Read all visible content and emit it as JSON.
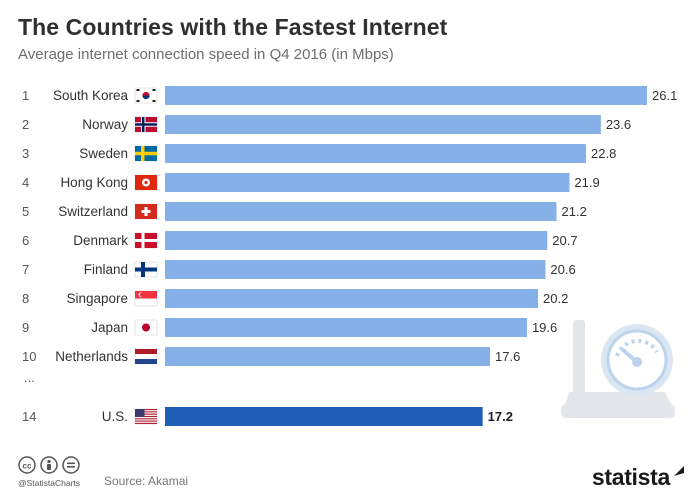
{
  "chart_data": {
    "type": "bar",
    "orientation": "horizontal",
    "title": "The Countries with the Fastest Internet",
    "subtitle": "Average internet connection speed in Q4 2016 (in Mbps)",
    "xlabel": "",
    "ylabel": "",
    "xlim": [
      0,
      26.1
    ],
    "grid": false,
    "rows": [
      {
        "rank": "1",
        "country": "South Korea",
        "value": 26.1,
        "value_label": "26.1",
        "flag": "south-korea-flag"
      },
      {
        "rank": "2",
        "country": "Norway",
        "value": 23.6,
        "value_label": "23.6",
        "flag": "norway-flag"
      },
      {
        "rank": "3",
        "country": "Sweden",
        "value": 22.8,
        "value_label": "22.8",
        "flag": "sweden-flag"
      },
      {
        "rank": "4",
        "country": "Hong Kong",
        "value": 21.9,
        "value_label": "21.9",
        "flag": "hong-kong-flag"
      },
      {
        "rank": "5",
        "country": "Switzerland",
        "value": 21.2,
        "value_label": "21.2",
        "flag": "switzerland-flag"
      },
      {
        "rank": "6",
        "country": "Denmark",
        "value": 20.7,
        "value_label": "20.7",
        "flag": "denmark-flag"
      },
      {
        "rank": "7",
        "country": "Finland",
        "value": 20.6,
        "value_label": "20.6",
        "flag": "finland-flag"
      },
      {
        "rank": "8",
        "country": "Singapore",
        "value": 20.2,
        "value_label": "20.2",
        "flag": "singapore-flag"
      },
      {
        "rank": "9",
        "country": "Japan",
        "value": 19.6,
        "value_label": "19.6",
        "flag": "japan-flag"
      },
      {
        "rank": "10",
        "country": "Netherlands",
        "value": 17.6,
        "value_label": "17.6",
        "flag": "netherlands-flag"
      }
    ],
    "ellipsis": "...",
    "highlight": {
      "rank": "14",
      "country": "U.S.",
      "value": 17.2,
      "value_label": "17.2",
      "flag": "us-flag"
    }
  },
  "colors": {
    "bar": "#86b0e8",
    "bar_highlight": "#1f5db8",
    "decor": "#dde3ea"
  },
  "footer": {
    "handle": "@StatistaCharts",
    "source": "Source: Akamai",
    "brand": "statista"
  }
}
